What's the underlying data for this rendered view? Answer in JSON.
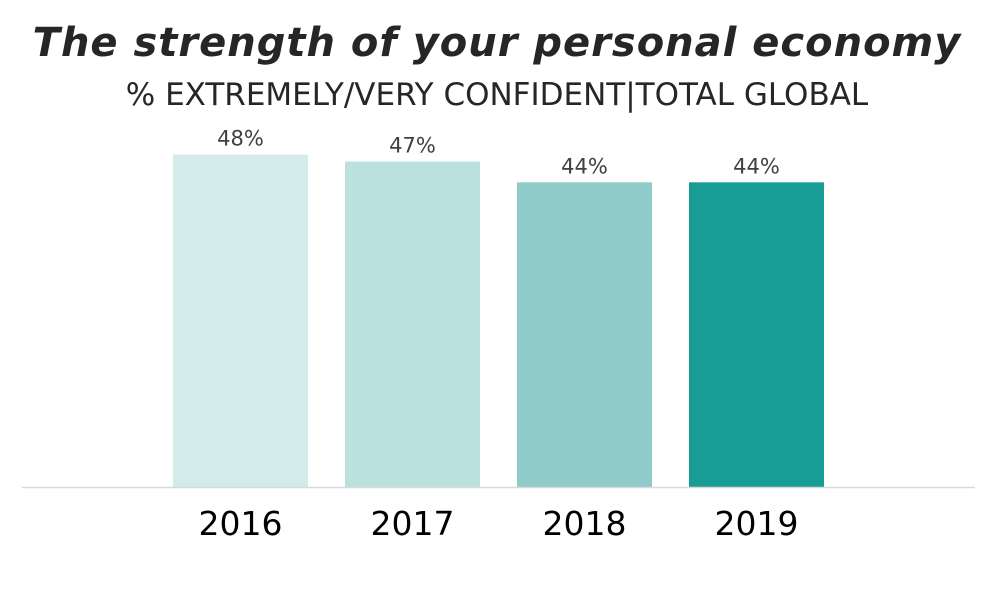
{
  "chart_data": {
    "type": "bar",
    "title": "The strength of your personal economy",
    "subtitle": "% EXTREMELY/VERY CONFIDENT|TOTAL GLOBAL",
    "categories": [
      "2016",
      "2017",
      "2018",
      "2019"
    ],
    "values": [
      48,
      47,
      44,
      44
    ],
    "value_labels": [
      "48%",
      "47%",
      "44%",
      "44%"
    ],
    "colors": [
      "#d3ebe9",
      "#bbe1df",
      "#8fcbc9",
      "#179c96"
    ],
    "axis_color": "#d9d9d9",
    "ylim": [
      0,
      53
    ],
    "grid": false,
    "legend": "none"
  }
}
